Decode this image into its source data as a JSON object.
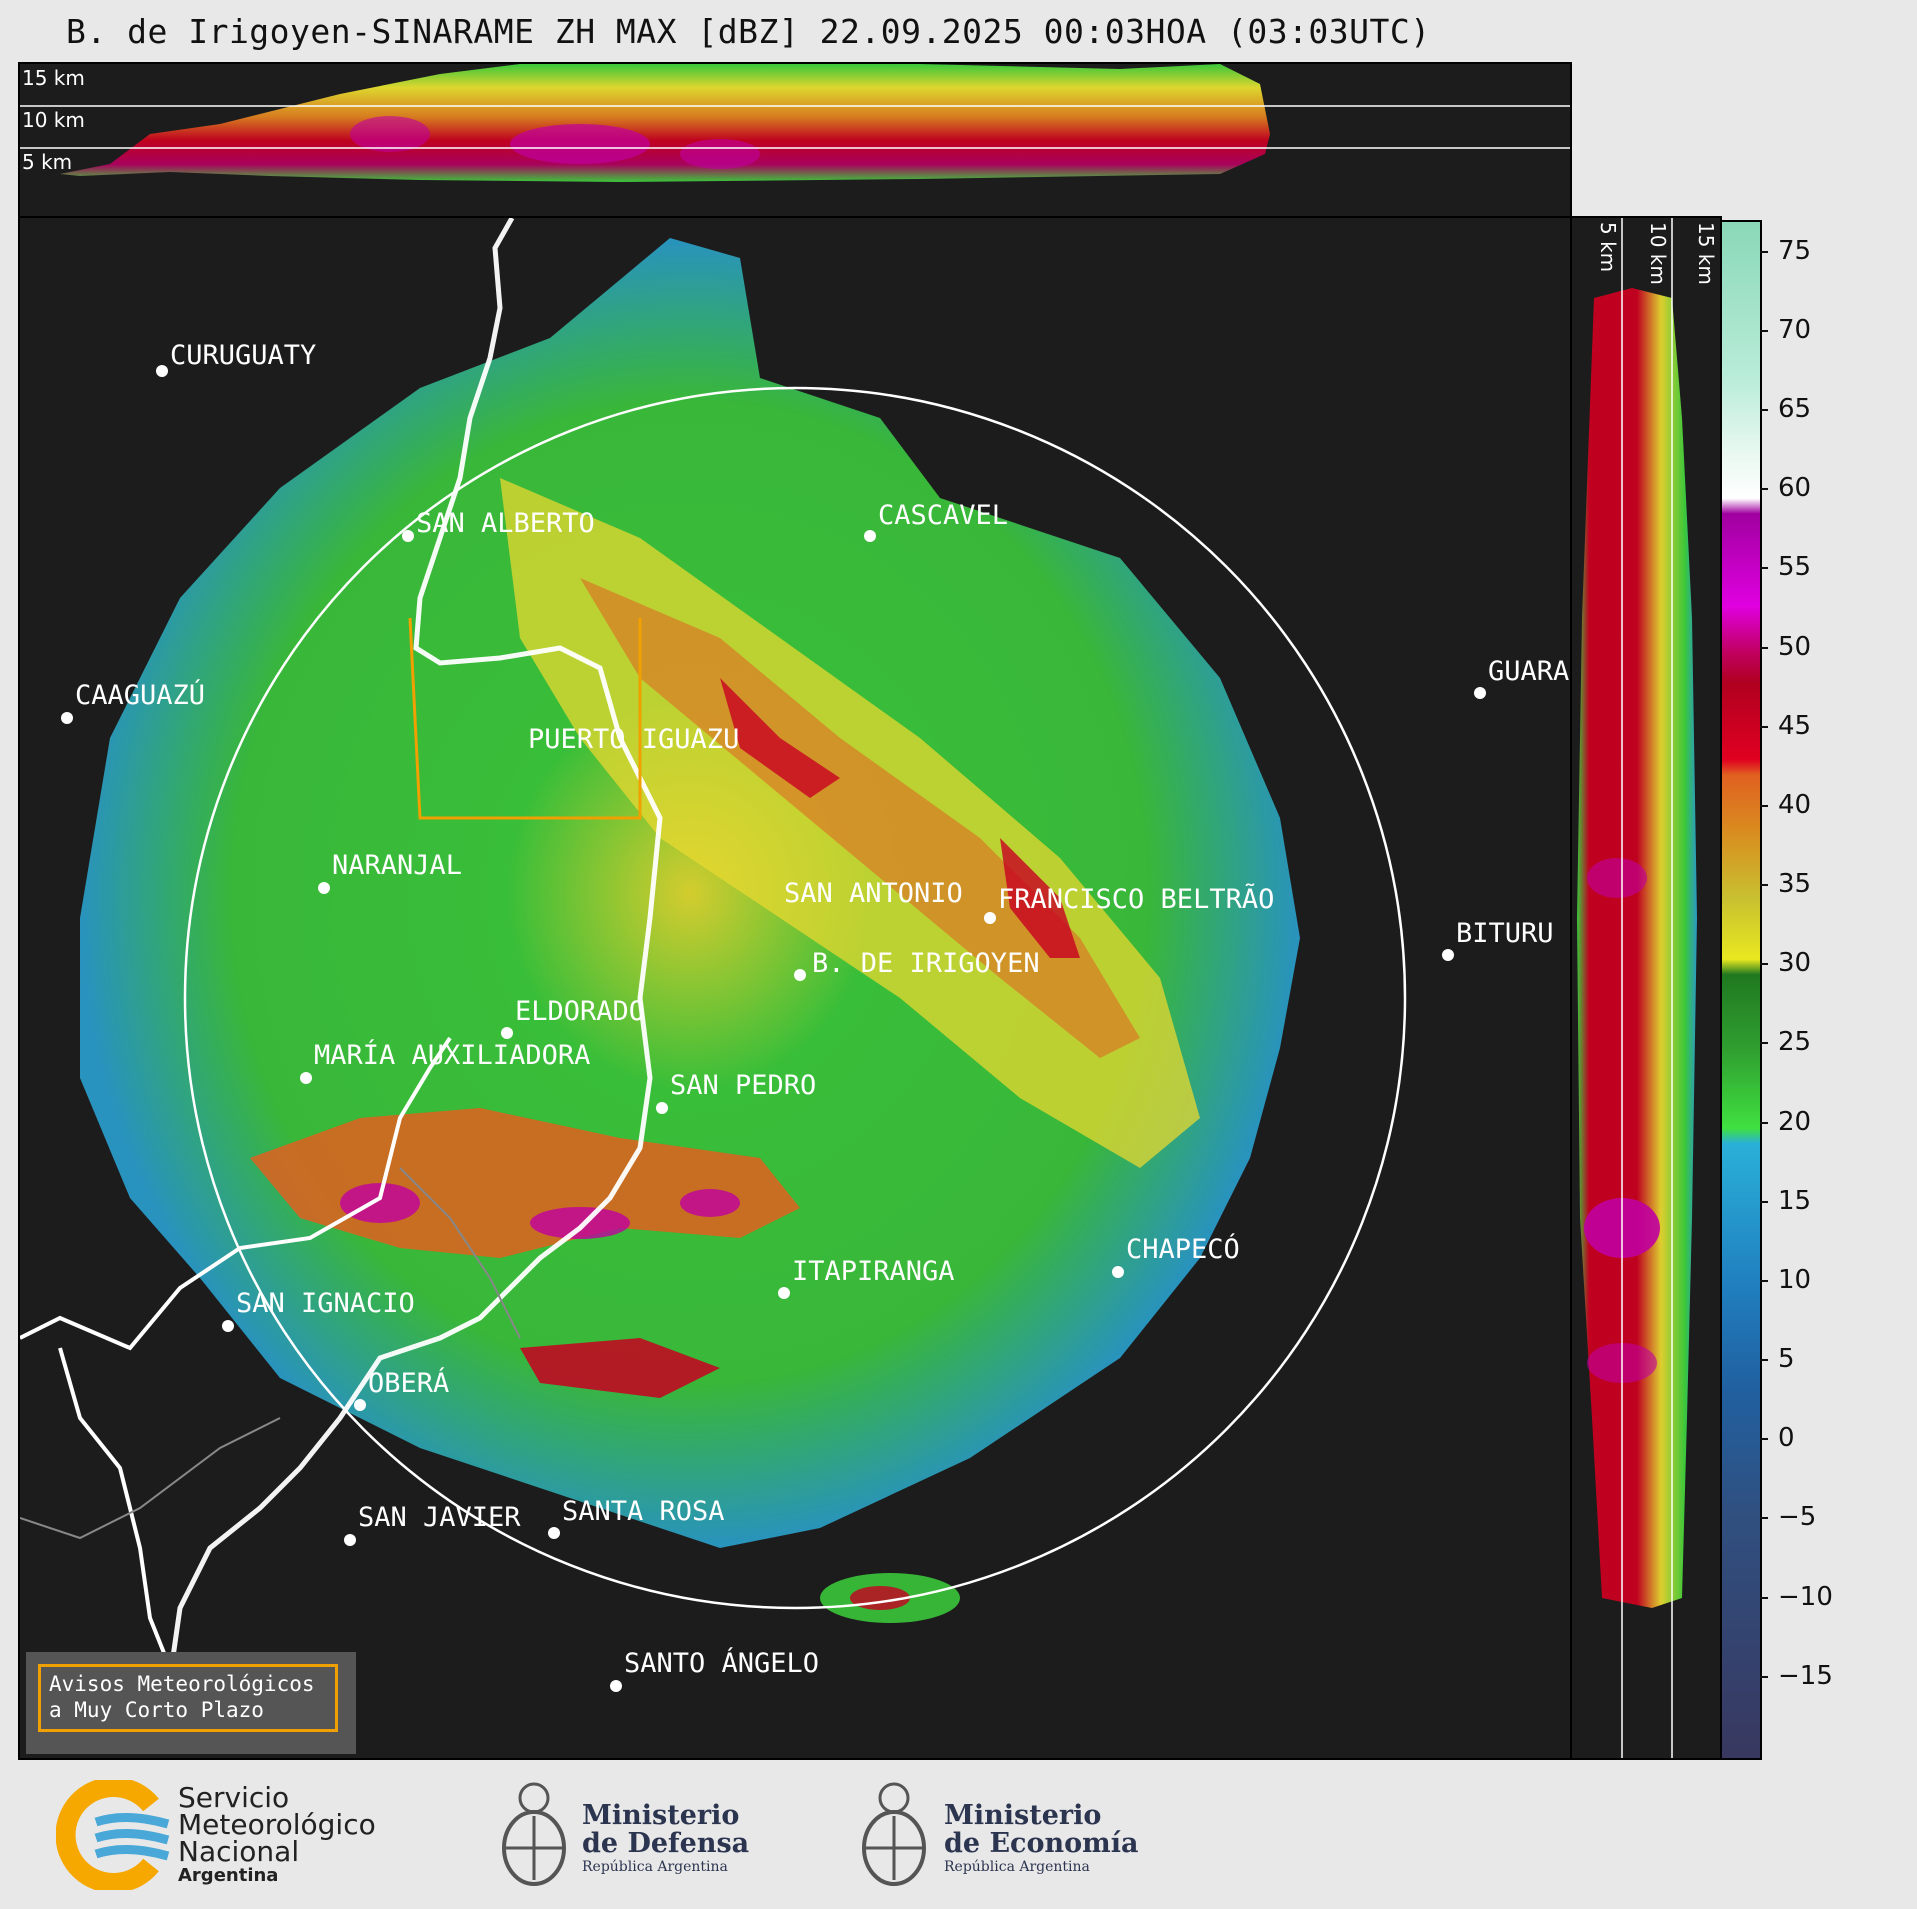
{
  "title": "B. de Irigoyen-SINARAME ZH MAX [dBZ] 22.09.2025 00:03HOA (03:03UTC)",
  "top_panel": {
    "height_labels": [
      "15 km",
      "10 km",
      "5 km"
    ]
  },
  "side_panel": {
    "height_labels": [
      "5 km",
      "10 km",
      "15 km"
    ]
  },
  "colorbar": {
    "unit": "dBZ",
    "ticks": [
      "75",
      "70",
      "65",
      "60",
      "55",
      "50",
      "45",
      "40",
      "35",
      "30",
      "25",
      "20",
      "15",
      "10",
      "5",
      "0",
      "−5",
      "−10",
      "−15"
    ],
    "range": [
      -20,
      77
    ]
  },
  "cities": [
    {
      "name": "CURUGUATY"
    },
    {
      "name": "SAN ALBERTO"
    },
    {
      "name": "CASCAVEL"
    },
    {
      "name": "CAAGUAZÚ"
    },
    {
      "name": "GUARA"
    },
    {
      "name": "PUERTO IGUAZU"
    },
    {
      "name": "NARANJAL"
    },
    {
      "name": "SAN ANTONIO"
    },
    {
      "name": "FRANCISCO BELTRÃO"
    },
    {
      "name": "BITURU"
    },
    {
      "name": "B. DE IRIGOYEN"
    },
    {
      "name": "ELDORADO"
    },
    {
      "name": "MARÍA AUXILIADORA"
    },
    {
      "name": "SAN PEDRO"
    },
    {
      "name": "ITAPIRANGA"
    },
    {
      "name": "CHAPECÓ"
    },
    {
      "name": "SAN IGNACIO"
    },
    {
      "name": "OBERÁ"
    },
    {
      "name": "SAN JAVIER"
    },
    {
      "name": "SANTA ROSA"
    },
    {
      "name": "SANTO ÁNGELO"
    }
  ],
  "notice": {
    "line1": "Avisos Meteorológicos",
    "line2": "a Muy Corto Plazo"
  },
  "logos": {
    "smn": {
      "line1": "Servicio",
      "line2": "Meteorológico",
      "line3": "Nacional",
      "line4": "Argentina"
    },
    "defensa": {
      "line1": "Ministerio",
      "line2": "de Defensa",
      "line3": "República Argentina"
    },
    "economia": {
      "line1": "Ministerio",
      "line2": "de Economía",
      "line3": "República Argentina"
    }
  },
  "colors": {
    "range_ring": "#ffffff",
    "notice_border": "#f0a000",
    "smn_orange": "#f6a800",
    "smn_blue": "#4aa8d8"
  }
}
